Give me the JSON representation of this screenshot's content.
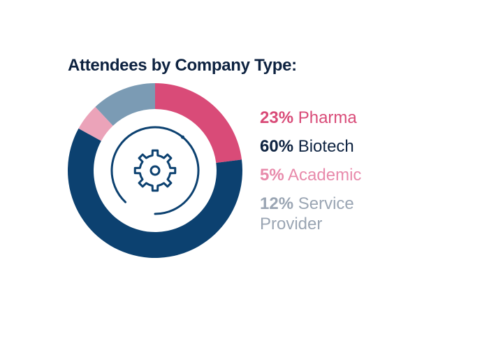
{
  "chart_data": {
    "type": "pie",
    "title": "Attendees by Company Type:",
    "slices": [
      {
        "label": "Pharma",
        "pct_text": "23%",
        "value": 23,
        "color": "#d94b78"
      },
      {
        "label": "Biotech",
        "pct_text": "60%",
        "value": 60,
        "color": "#0c4170"
      },
      {
        "label": "Academic",
        "pct_text": "5%",
        "value": 5,
        "color": "#eba3b9"
      },
      {
        "label": "Service Provider",
        "pct_text": "12%",
        "value": 12,
        "color": "#7b9bb4"
      }
    ],
    "legend_placement": "right",
    "label_colors": [
      "#d94b78",
      "#0d2240",
      "#e88aab",
      "#9aa5b3"
    ],
    "center_icon": "gear-icon",
    "icon_color": "#0c4170"
  }
}
